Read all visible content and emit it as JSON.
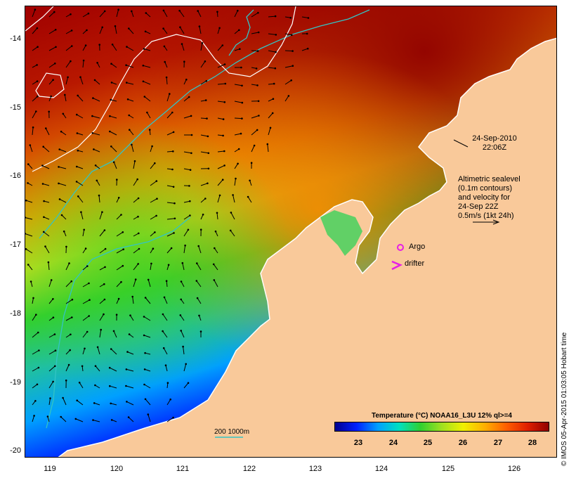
{
  "map": {
    "lat_labels": [
      "-14",
      "-15",
      "-16",
      "-17",
      "-18",
      "-19",
      "-20"
    ],
    "lon_labels": [
      "119",
      "120",
      "121",
      "122",
      "123",
      "124",
      "125",
      "126"
    ],
    "date_line1": "24-Sep-2010",
    "date_line2": "22:06Z",
    "altimetry_lines": [
      "Altimetric sealevel",
      "(0.1m contours)",
      "and velocity for",
      "24-Sep 22Z",
      "0.5m/s (1kt 24h)"
    ],
    "argo_label": "Argo",
    "drifter_label": "drifter",
    "depth_scale_label": "200  1000m",
    "credit": "© IMOS 05-Apr-2015 01:03:05 Hobart time",
    "colors": {
      "land": "#f9c99a",
      "contour": "#ffffff",
      "bathymetry": "#33c4c4",
      "argo": "#e61ee6",
      "drifter": "#e61ee6"
    }
  },
  "colorbar": {
    "title": "Temperature (°C) NOAA16_L3U 12% ql>=4",
    "ticks": [
      "23",
      "24",
      "25",
      "26",
      "27",
      "28"
    ],
    "range": [
      22.2,
      28.6
    ],
    "colors": [
      "#00008f",
      "#0020ff",
      "#00a0ff",
      "#00e0c0",
      "#30d030",
      "#a0e020",
      "#f0f000",
      "#ffb000",
      "#ff6000",
      "#e02000",
      "#900000"
    ]
  }
}
